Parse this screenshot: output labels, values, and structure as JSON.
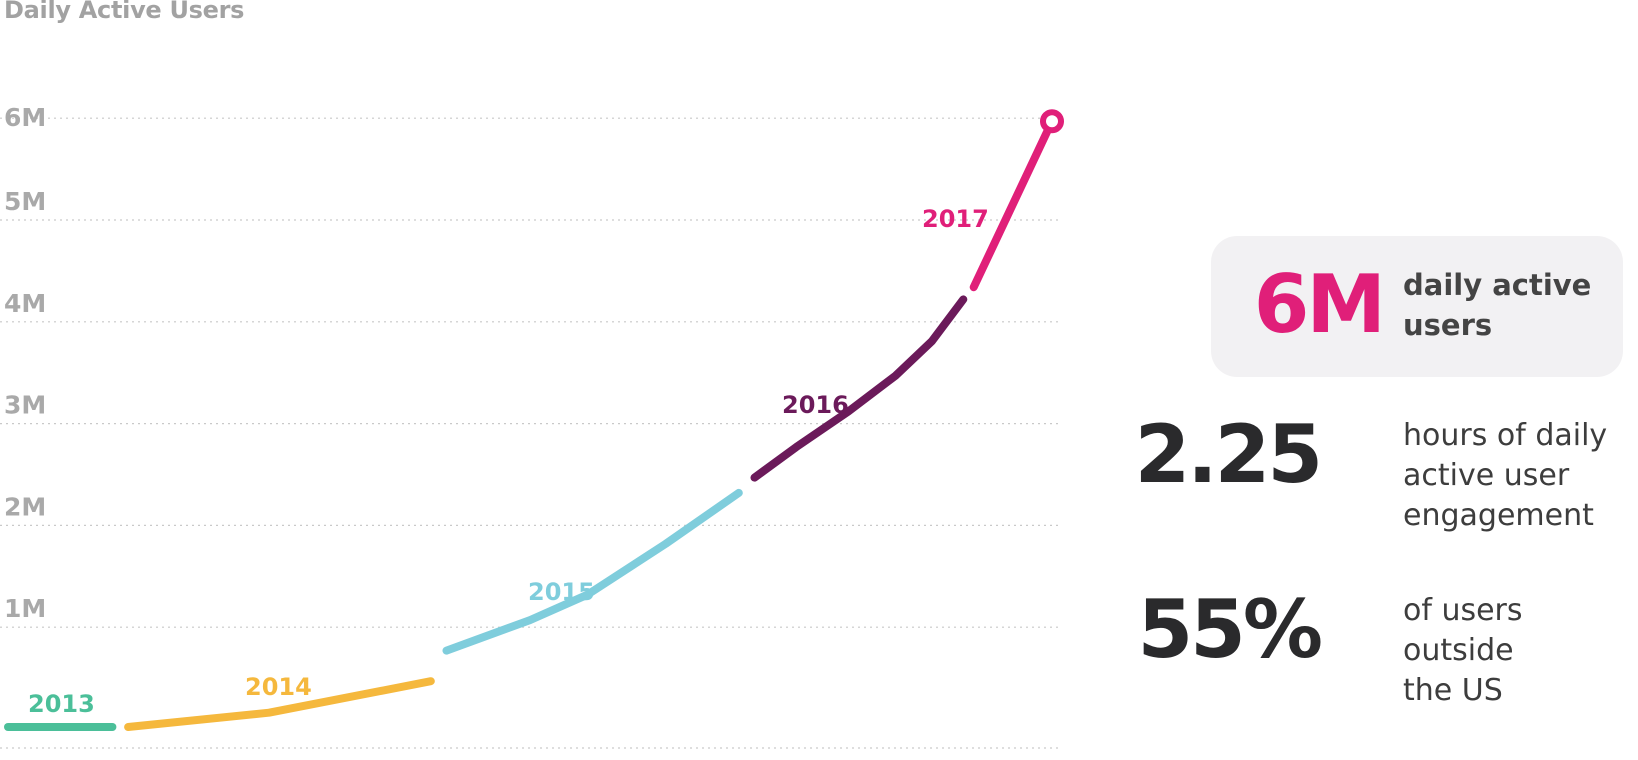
{
  "chart_data": {
    "type": "line",
    "title": "Daily Active Users",
    "y_ticks": [
      "1M",
      "2M",
      "3M",
      "4M",
      "5M",
      "6M"
    ],
    "ylim": [
      0,
      6000000
    ],
    "grid": true,
    "gridline_values": [
      0,
      1000000,
      2000000,
      3000000,
      4000000,
      5000000,
      6000000
    ],
    "series": [
      {
        "name": "2013",
        "color": "#4bbf99",
        "points": [
          [
            0.0,
            0
          ],
          [
            1.0,
            0
          ]
        ]
      },
      {
        "name": "2014",
        "color": "#f5b83d",
        "points": [
          [
            1.15,
            0
          ],
          [
            2.5,
            140000
          ],
          [
            4.05,
            450000
          ]
        ]
      },
      {
        "name": "2015",
        "color": "#7fcddc",
        "points": [
          [
            4.2,
            750000
          ],
          [
            5.0,
            1050000
          ],
          [
            5.55,
            1300000
          ],
          [
            6.3,
            1800000
          ],
          [
            7.0,
            2300000
          ]
        ]
      },
      {
        "name": "2016",
        "color": "#6b1a5a",
        "points": [
          [
            7.15,
            2450000
          ],
          [
            7.55,
            2750000
          ],
          [
            8.05,
            3100000
          ],
          [
            8.5,
            3450000
          ],
          [
            8.85,
            3790000
          ],
          [
            9.15,
            4200000
          ]
        ]
      },
      {
        "name": "2017",
        "color": "#e01f79",
        "points": [
          [
            9.25,
            4320000
          ],
          [
            10.0,
            5950000
          ]
        ]
      }
    ],
    "end_marker": {
      "x": 10.0,
      "y": 5950000,
      "color": "#e01f79"
    }
  },
  "stats": {
    "dau": {
      "value": "6M",
      "label_line1": "daily active",
      "label_line2": "users"
    },
    "hours": {
      "value": "2.25",
      "label_line1": "hours of daily",
      "label_line2": "active user",
      "label_line3": "engagement"
    },
    "intl": {
      "value": "55%",
      "label_line1": "of users outside",
      "label_line2": "the US"
    }
  }
}
